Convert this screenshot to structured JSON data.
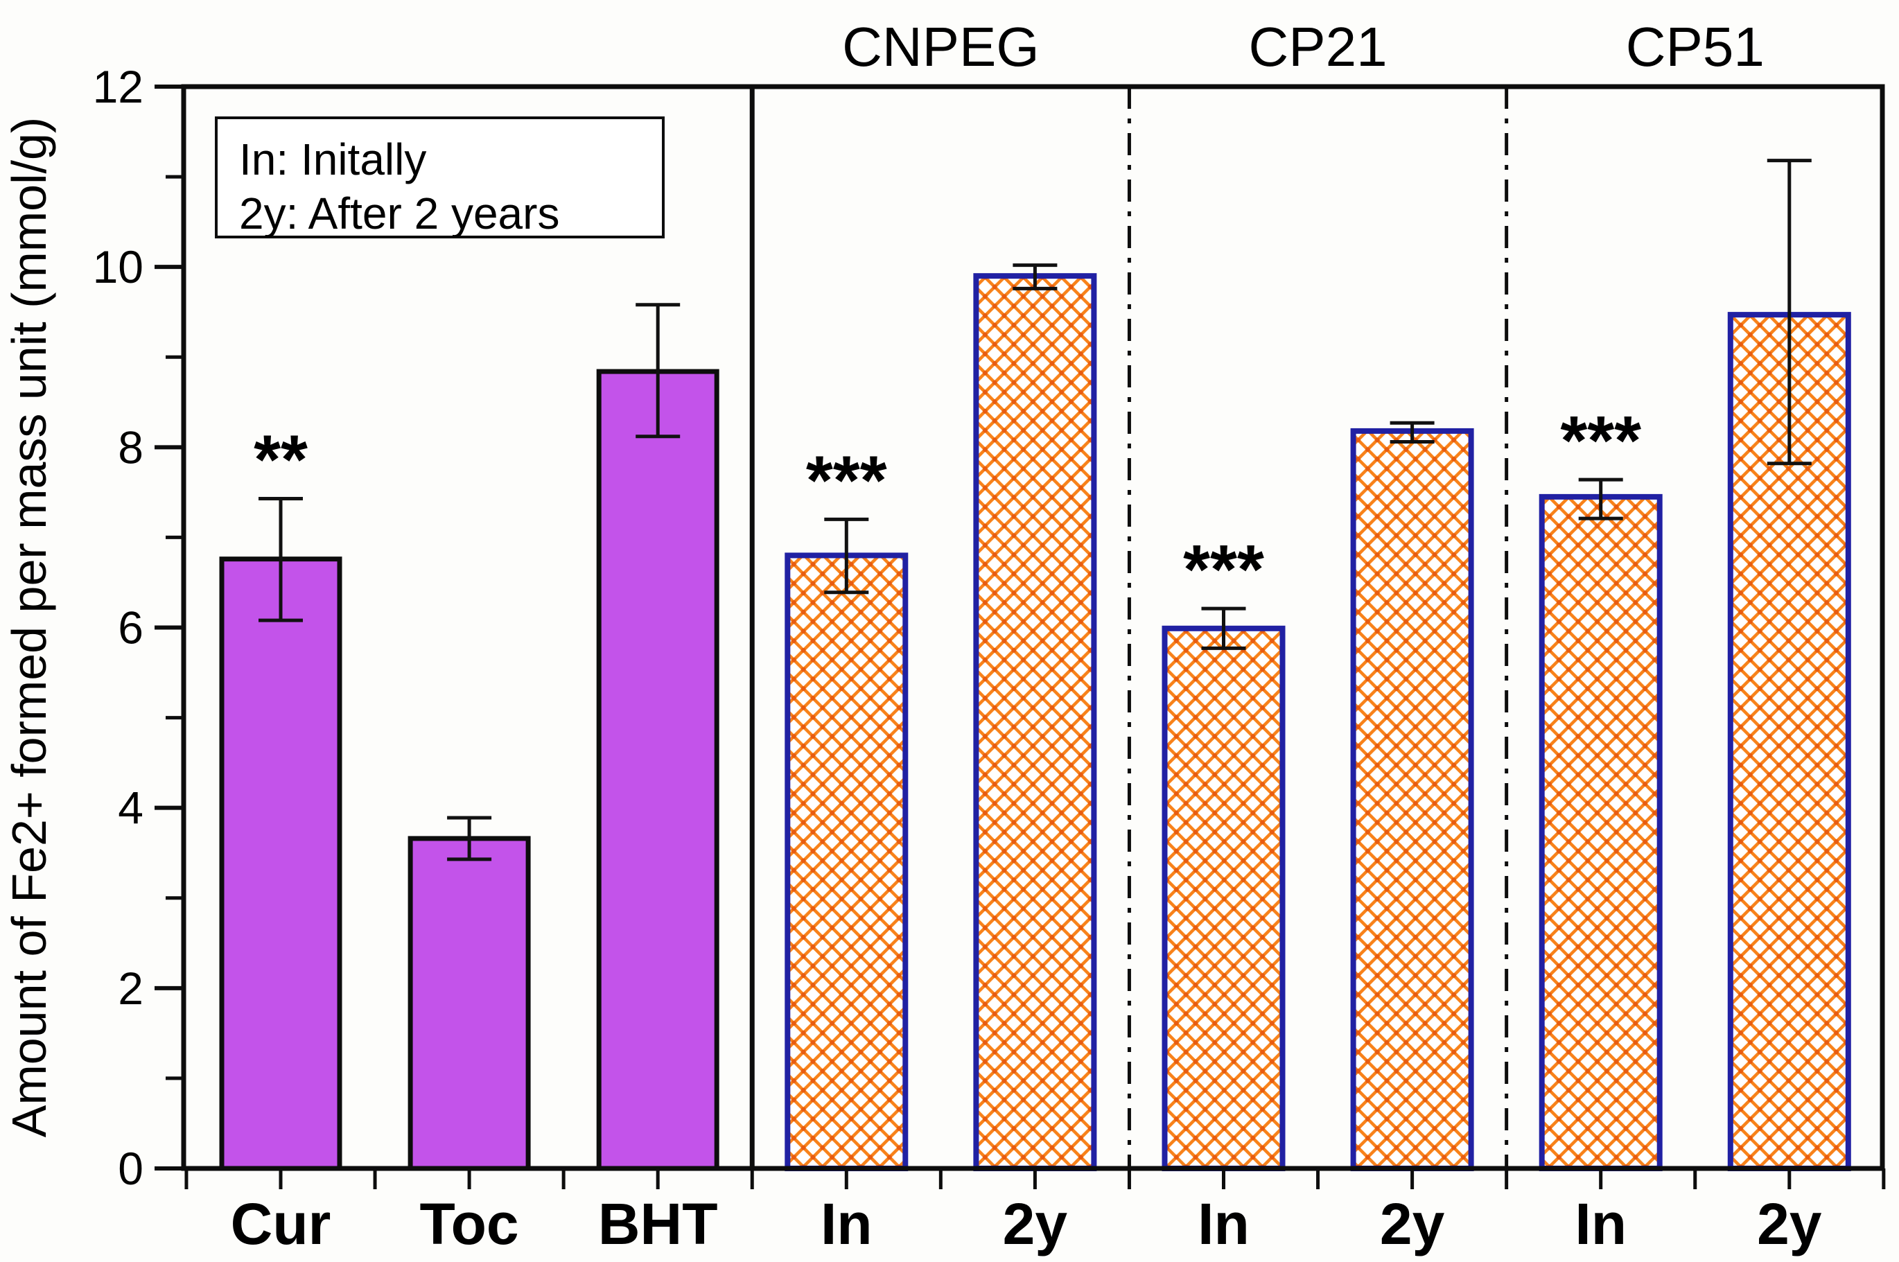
{
  "figure": {
    "background": "#fdfdfb"
  },
  "chart_data": {
    "type": "bar",
    "title": "",
    "xlabel": "",
    "ylabel": "Amount of Fe2+ formed per mass unit (mmol/g)",
    "ylim": [
      0,
      12
    ],
    "y_major_ticks": [
      0,
      2,
      4,
      6,
      8,
      10,
      12
    ],
    "y_minor_ticks": [
      1,
      3,
      5,
      7,
      9,
      11
    ],
    "grid": false,
    "legend_lines": [
      "In: Initally",
      "2y: After 2 years"
    ],
    "legend_position": "top-left-inside",
    "categories": [
      "Cur",
      "Toc",
      "BHT",
      "In",
      "2y",
      "In",
      "2y",
      "In",
      "2y"
    ],
    "values": [
      6.76,
      3.66,
      8.84,
      6.8,
      9.9,
      5.99,
      8.18,
      7.45,
      9.47
    ],
    "error_low": [
      6.08,
      3.43,
      8.12,
      6.39,
      9.76,
      5.77,
      8.06,
      7.21,
      7.82
    ],
    "error_high": [
      7.43,
      3.89,
      9.58,
      7.2,
      10.02,
      6.21,
      8.27,
      7.64,
      11.18
    ],
    "significance": [
      "**",
      "",
      "",
      "***",
      "",
      "***",
      "",
      "***",
      ""
    ],
    "bar_styles": [
      "solid",
      "solid",
      "solid",
      "hatch",
      "hatch",
      "hatch",
      "hatch",
      "hatch",
      "hatch"
    ],
    "group_titles": [
      {
        "label": "CNPEG",
        "span": [
          3,
          4
        ]
      },
      {
        "label": "CP21",
        "span": [
          5,
          6
        ]
      },
      {
        "label": "CP51",
        "span": [
          7,
          8
        ]
      }
    ],
    "dividers": [
      {
        "after_index": 2,
        "style": "solid"
      },
      {
        "after_index": 4,
        "style": "dashdot"
      },
      {
        "after_index": 6,
        "style": "dashdot"
      }
    ],
    "colors": {
      "solid_fill": "#c353ea",
      "solid_border": "#0d0d0d",
      "hatch_fill": "#ffffff",
      "hatch_line": "#f8821a",
      "hatch_dot": "#e85c10",
      "hatch_border": "#2121a3",
      "axis": "#0d0d0d",
      "error_bar": "#111111",
      "text": "#000000"
    }
  }
}
